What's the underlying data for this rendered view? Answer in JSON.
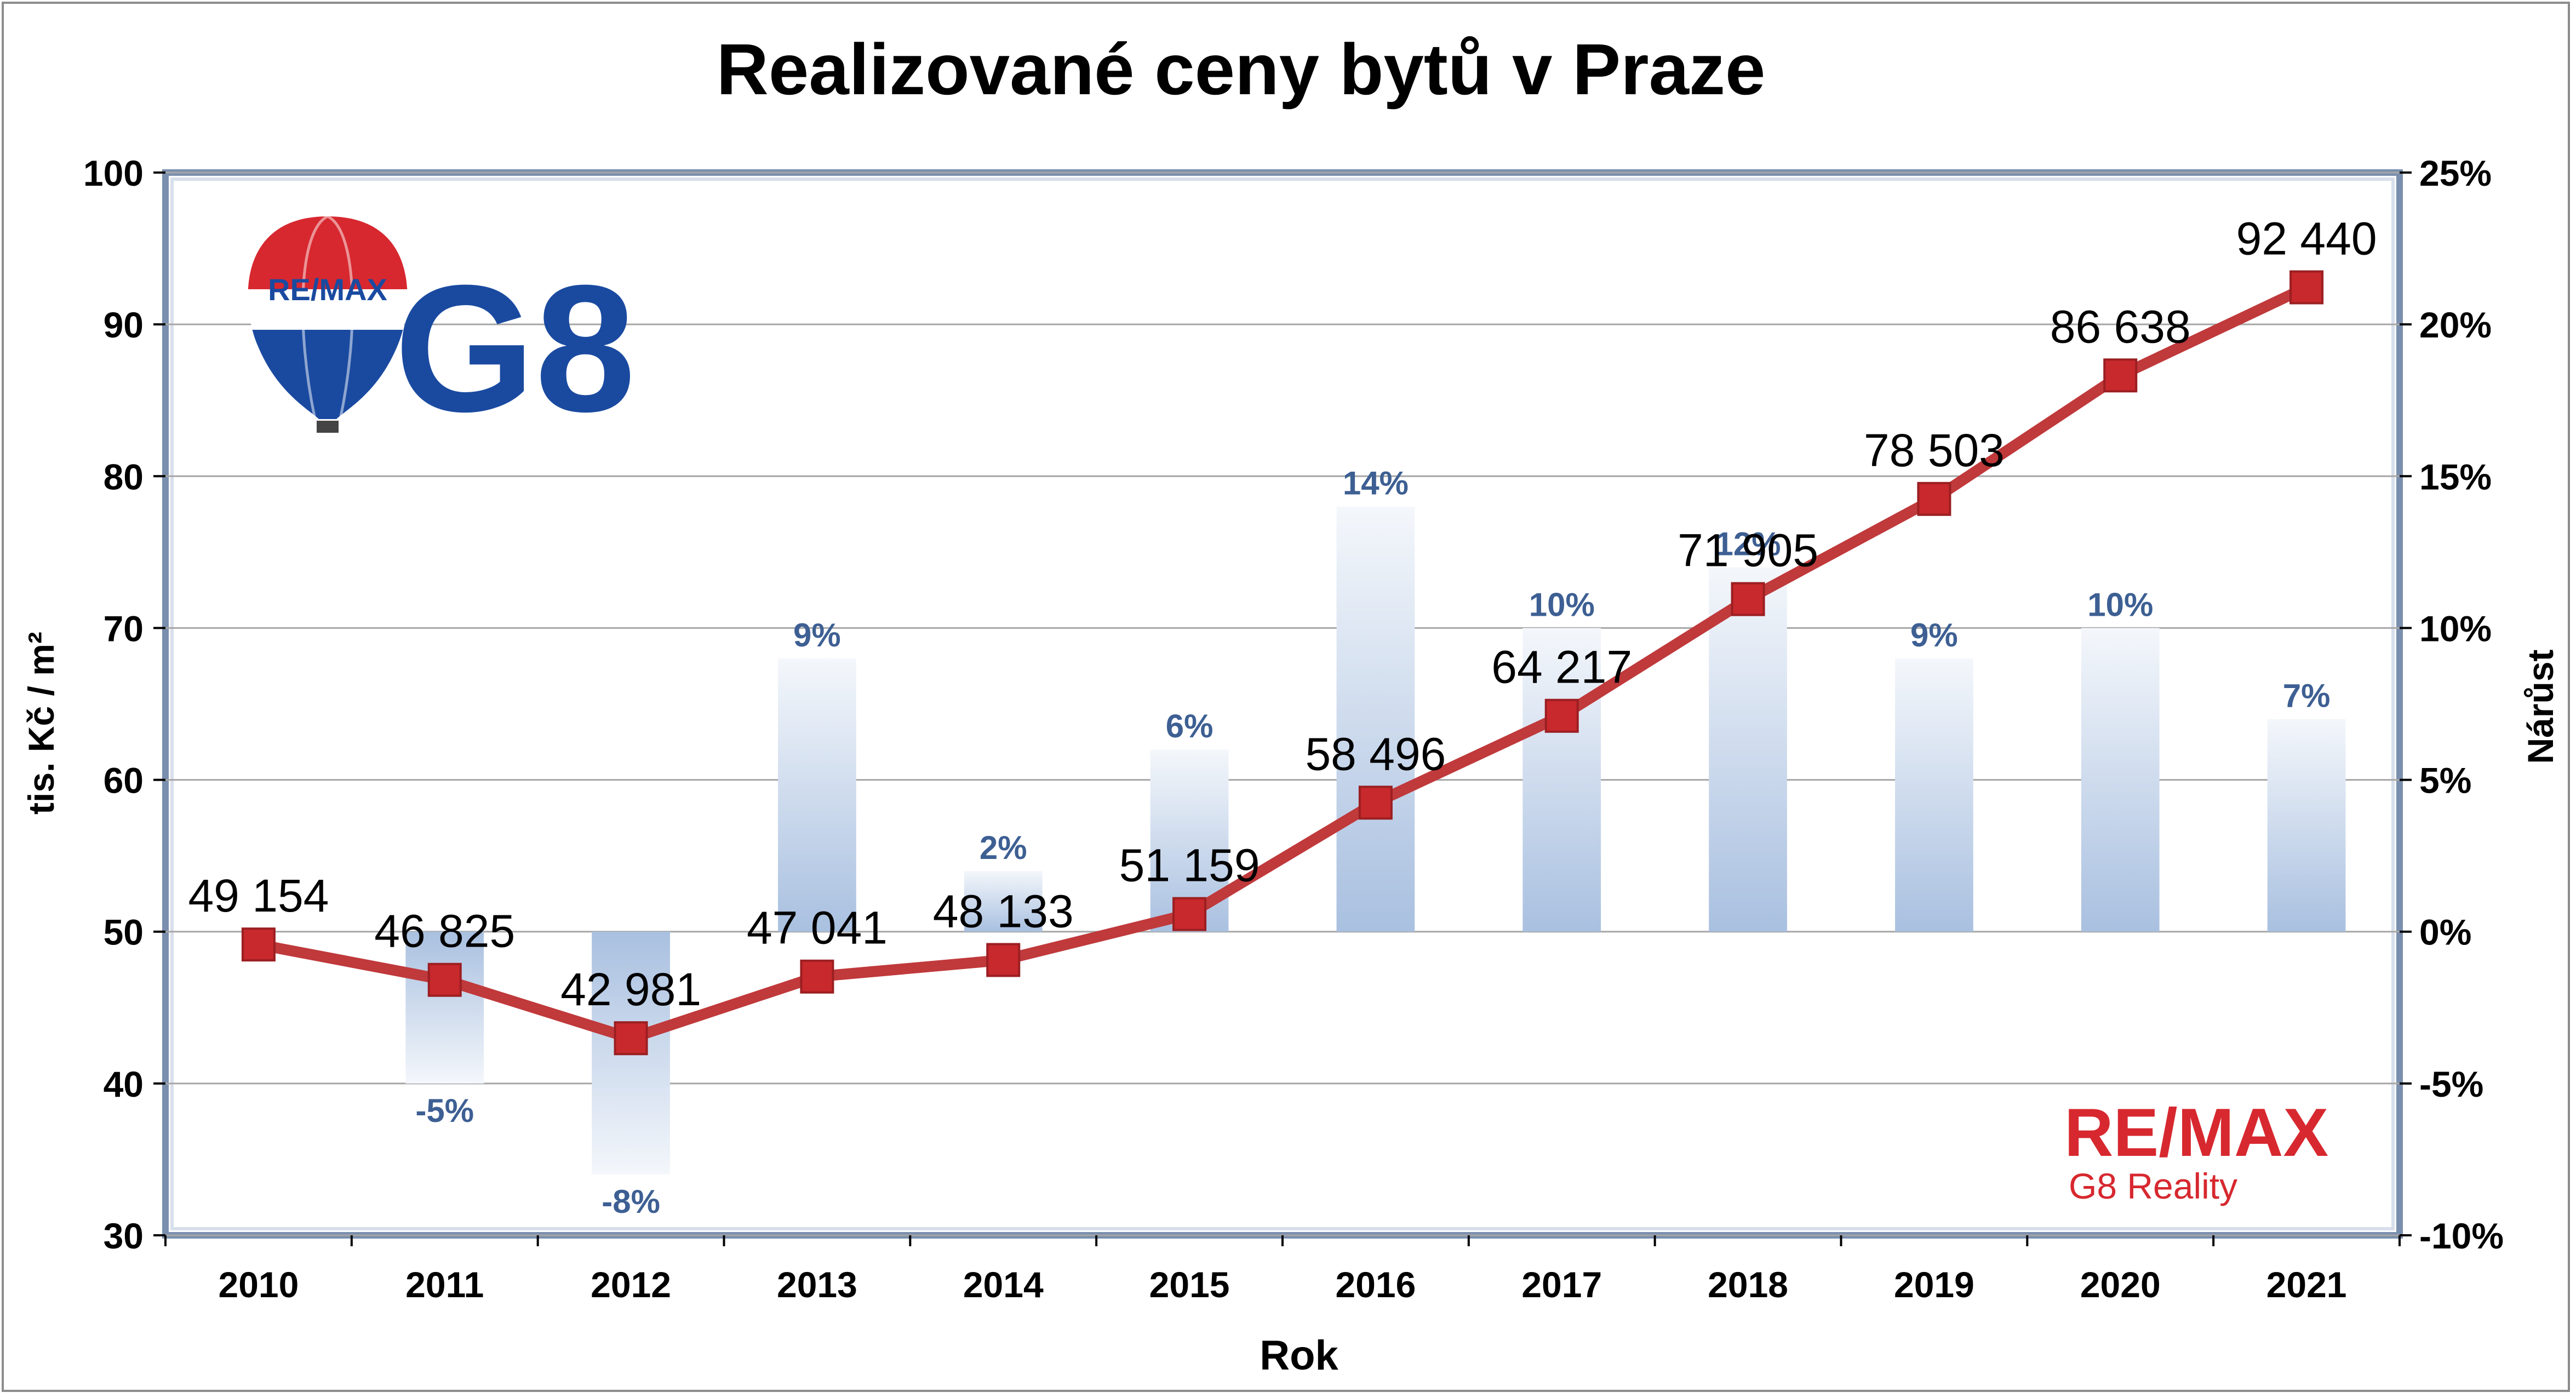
{
  "chart_data": {
    "type": "bar+line",
    "title": "Realizované ceny bytů v Praze",
    "xlabel": "Rok",
    "ylabel": "tis. Kč / m²",
    "y2label": "Nárůst",
    "categories": [
      "2010",
      "2011",
      "2012",
      "2013",
      "2014",
      "2015",
      "2016",
      "2017",
      "2018",
      "2019",
      "2020",
      "2021"
    ],
    "ylim": [
      30,
      100
    ],
    "yticks": [
      "30",
      "40",
      "50",
      "60",
      "70",
      "80",
      "90",
      "100"
    ],
    "y2lim": [
      -0.1,
      0.25
    ],
    "y2ticks": [
      "-10%",
      "-5%",
      "0%",
      "5%",
      "10%",
      "15%",
      "20%",
      "25%"
    ],
    "grid": true,
    "series": [
      {
        "type": "line",
        "axis": "left",
        "color": "#c0393b",
        "marker_color": "#c8292c",
        "values": [
          49.154,
          46.825,
          42.981,
          47.041,
          48.133,
          51.159,
          58.496,
          64.217,
          71.905,
          78.503,
          86.638,
          92.44
        ],
        "labels": [
          "49 154",
          "46 825",
          "42 981",
          "47 041",
          "48 133",
          "51 159",
          "58 496",
          "64 217",
          "71 905",
          "78 503",
          "86 638",
          "92 440"
        ]
      },
      {
        "type": "bar",
        "axis": "right",
        "color": "#a9c0e0",
        "values": [
          null,
          -0.05,
          -0.08,
          0.09,
          0.02,
          0.06,
          0.14,
          0.1,
          0.12,
          0.09,
          0.1,
          0.07
        ],
        "labels": [
          "",
          "-5%",
          "-8%",
          "9%",
          "2%",
          "6%",
          "14%",
          "10%",
          "12%",
          "9%",
          "10%",
          "7%"
        ]
      }
    ]
  },
  "logos": {
    "balloon_text": "RE/MAX",
    "g8_text": "G8",
    "brand_text": "RE/MAX",
    "brand_sub": "G8 Reality",
    "brand_color": "#d7282f",
    "blue_color": "#1a4aa0"
  }
}
